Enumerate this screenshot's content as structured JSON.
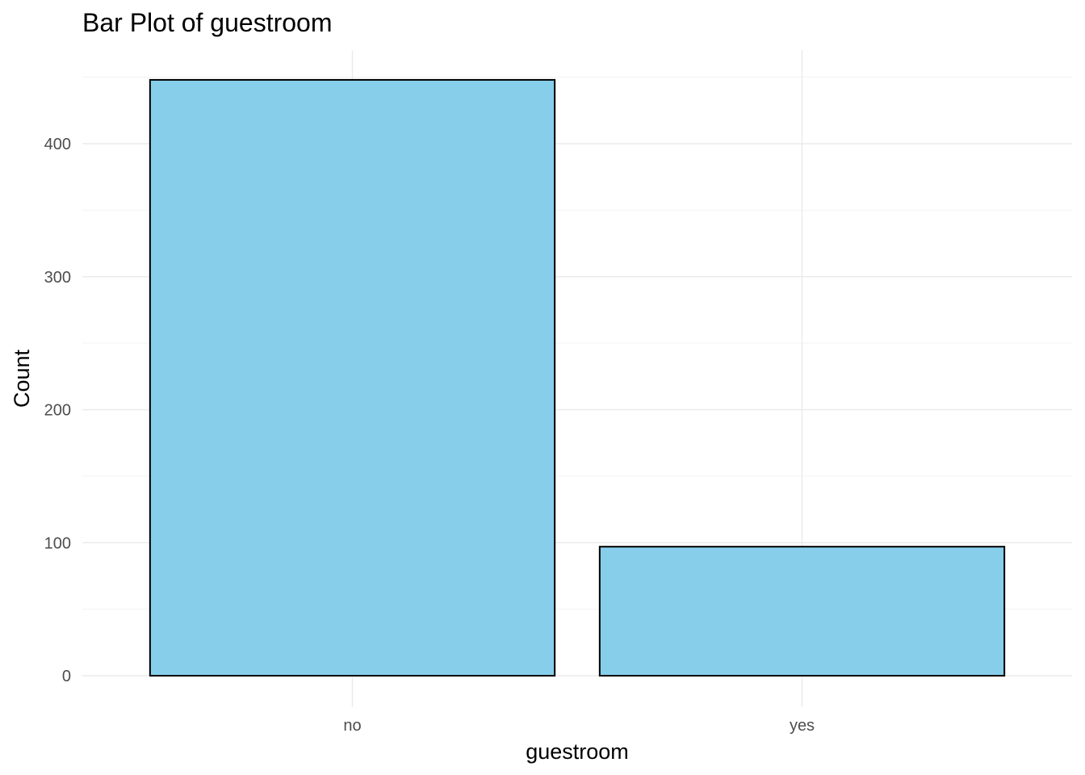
{
  "chart_data": {
    "type": "bar",
    "title": "Bar Plot of guestroom",
    "xlabel": "guestroom",
    "ylabel": "Count",
    "categories": [
      "no",
      "yes"
    ],
    "values": [
      448,
      97
    ],
    "ylim": [
      0,
      460
    ],
    "yticks": [
      0,
      100,
      200,
      300,
      400
    ],
    "grid": true,
    "colors": {
      "bar_fill": "#87CEEB",
      "bar_stroke": "#000000",
      "grid_major": "#ebebeb",
      "grid_minor": "#f3f3f3",
      "tick_text": "#4d4d4d"
    }
  }
}
